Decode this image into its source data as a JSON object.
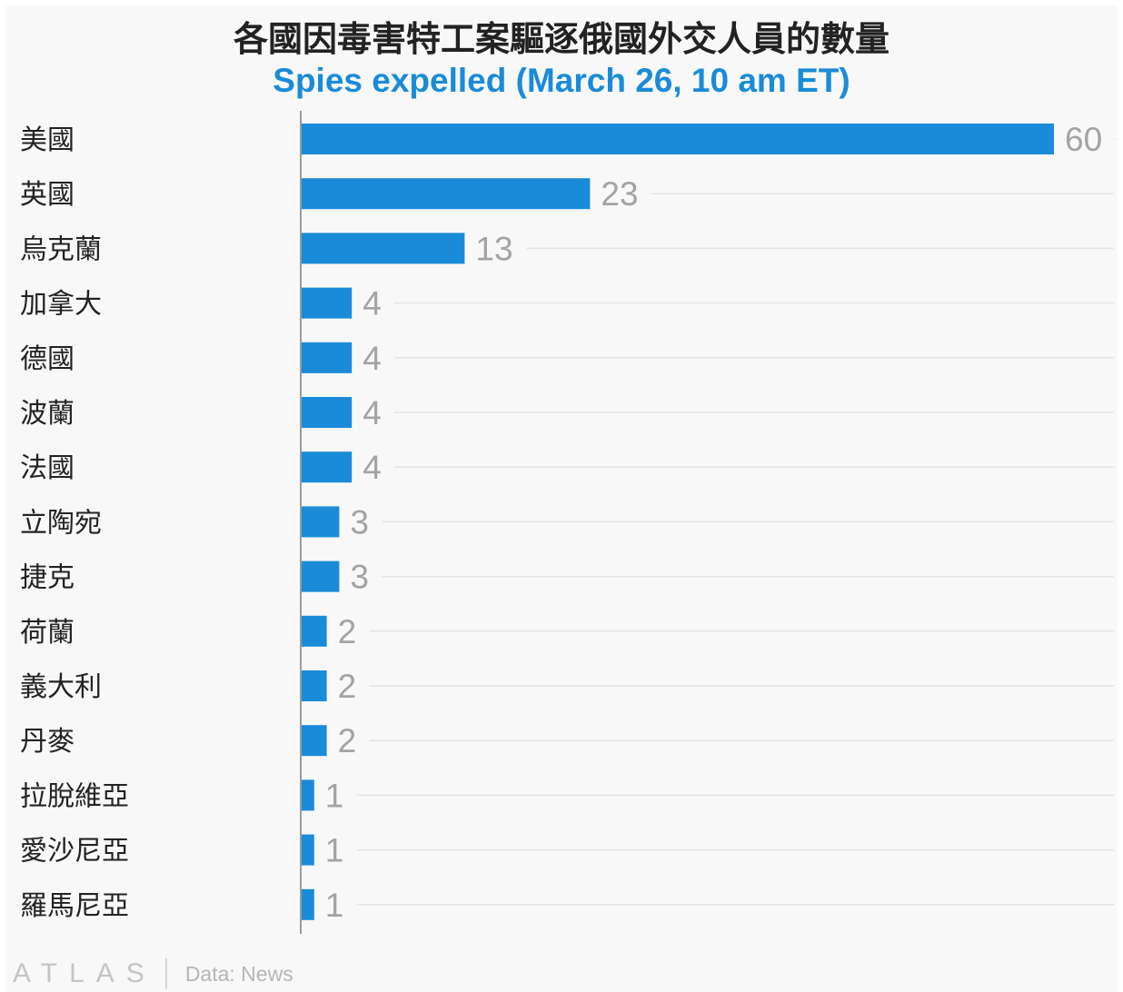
{
  "chart_data": {
    "type": "bar",
    "orientation": "horizontal",
    "title": "各國因毒害特工案驅逐俄國外交人員的數量",
    "subtitle": "Spies expelled (March 26, 10 am ET)",
    "categories": [
      "美國",
      "英國",
      "烏克蘭",
      "加拿大",
      "德國",
      "波蘭",
      "法國",
      "立陶宛",
      "捷克",
      "荷蘭",
      "義大利",
      "丹麥",
      "拉脫維亞",
      "愛沙尼亞",
      "羅馬尼亞"
    ],
    "values": [
      60,
      23,
      13,
      4,
      4,
      4,
      4,
      3,
      3,
      2,
      2,
      2,
      1,
      1,
      1
    ],
    "xlim": [
      0,
      60
    ],
    "grid": true,
    "legend": "none",
    "bar_color": "#1a8bd8"
  },
  "footer": {
    "brand": "ATLAS",
    "source": "Data: News"
  }
}
